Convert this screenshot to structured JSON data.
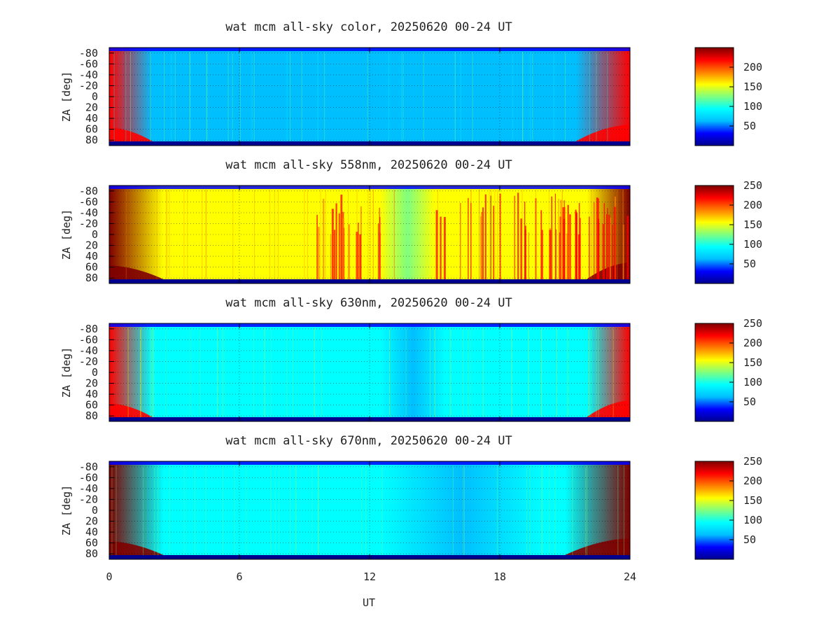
{
  "colormap": [
    "#00008f",
    "#0000ff",
    "#00bfff",
    "#00ffff",
    "#7fff7f",
    "#ffff00",
    "#ff7f00",
    "#ff0000",
    "#7f0000"
  ],
  "chart_data": [
    {
      "type": "heatmap",
      "title": "wat mcm all-sky color, 20250620 00-24 UT",
      "xlabel": "",
      "ylabel": "ZA [deg]",
      "x_range": [
        0,
        24
      ],
      "x_ticks": [
        0,
        6,
        12,
        18,
        24
      ],
      "y_range": [
        -90,
        90
      ],
      "y_ticks": [
        "-80",
        "-60",
        "-40",
        "-20",
        "0",
        "20",
        "40",
        "60",
        "80"
      ],
      "colorbar_range": [
        0,
        250
      ],
      "colorbar_ticks": [
        "50",
        "100",
        "150",
        "200"
      ],
      "grid": true,
      "approx_values": {
        "background": 75,
        "bright_edges_hours": [
          [
            0,
            2
          ],
          [
            21.5,
            24
          ]
        ],
        "edge_peak": 220,
        "dark_interval_hours": [
          13,
          20
        ],
        "dark_level": 55
      }
    },
    {
      "type": "heatmap",
      "title": "wat mcm all-sky 558nm, 20250620 00-24 UT",
      "xlabel": "",
      "ylabel": "ZA [deg]",
      "x_range": [
        0,
        24
      ],
      "x_ticks": [
        0,
        6,
        12,
        18,
        24
      ],
      "y_range": [
        -90,
        90
      ],
      "y_ticks": [
        "-80",
        "-60",
        "-40",
        "-20",
        "0",
        "20",
        "40",
        "60",
        "80"
      ],
      "colorbar_range": [
        0,
        250
      ],
      "colorbar_ticks": [
        "50",
        "100",
        "150",
        "200",
        "250"
      ],
      "grid": true,
      "approx_values": {
        "background": 150,
        "bright_edges_hours": [
          [
            0,
            2.5
          ],
          [
            22,
            24
          ]
        ],
        "edge_peak": 240,
        "active_intervals_hours": [
          [
            9.5,
            12.5
          ],
          [
            15,
            24
          ]
        ],
        "active_peak": 235,
        "quiet_interval_hours": [
          12.5,
          15
        ],
        "quiet_level": 110
      }
    },
    {
      "type": "heatmap",
      "title": "wat mcm all-sky 630nm, 20250620 00-24 UT",
      "xlabel": "",
      "ylabel": "ZA [deg]",
      "x_range": [
        0,
        24
      ],
      "x_ticks": [
        0,
        6,
        12,
        18,
        24
      ],
      "y_range": [
        -90,
        90
      ],
      "y_ticks": [
        "-80",
        "-60",
        "-40",
        "-20",
        "0",
        "20",
        "40",
        "60",
        "80"
      ],
      "colorbar_range": [
        0,
        250
      ],
      "colorbar_ticks": [
        "50",
        "100",
        "150",
        "200",
        "250"
      ],
      "grid": true,
      "approx_values": {
        "background": 95,
        "bright_edges_hours": [
          [
            0,
            2
          ],
          [
            22,
            24
          ]
        ],
        "edge_peak": 215,
        "dark_interval_hours": [
          12.5,
          15.5
        ],
        "dark_level": 65
      }
    },
    {
      "type": "heatmap",
      "title": "wat mcm all-sky 670nm, 20250620 00-24 UT",
      "xlabel": "UT",
      "ylabel": "ZA [deg]",
      "x_range": [
        0,
        24
      ],
      "x_ticks": [
        0,
        6,
        12,
        18,
        24
      ],
      "y_range": [
        -90,
        90
      ],
      "y_ticks": [
        "-80",
        "-60",
        "-40",
        "-20",
        "0",
        "20",
        "40",
        "60",
        "80"
      ],
      "colorbar_range": [
        0,
        250
      ],
      "colorbar_ticks": [
        "50",
        "100",
        "150",
        "200",
        "250"
      ],
      "grid": true,
      "approx_values": {
        "background": 85,
        "bright_edges_hours": [
          [
            0,
            2.5
          ],
          [
            21,
            24
          ]
        ],
        "edge_peak": 235,
        "dark_interval_hours": [
          12.5,
          20
        ],
        "dark_level": 60
      }
    }
  ]
}
